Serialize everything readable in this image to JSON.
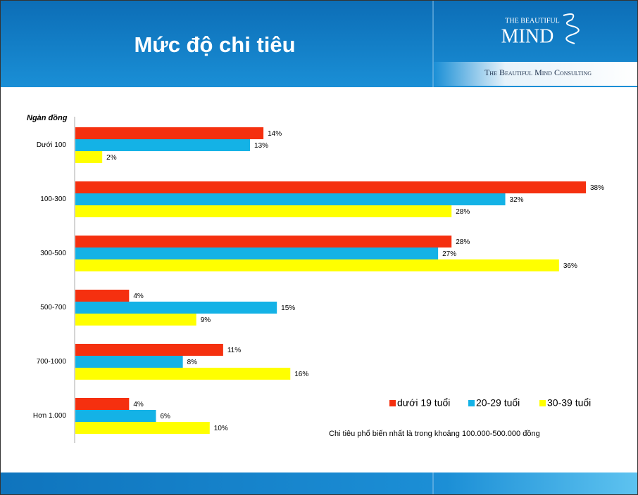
{
  "header": {
    "title": "Mức độ chi tiêu"
  },
  "logo": {
    "top": "THE BEAUTIFUL",
    "main": "MIND",
    "tagline": "The Beautiful Mind Consulting"
  },
  "chart_data": {
    "type": "bar",
    "orientation": "horizontal",
    "y_label": "Ngàn đồng",
    "categories": [
      "Dưới 100",
      "100-300",
      "300-500",
      "500-700",
      "700-1000",
      "Hơn 1.000"
    ],
    "series": [
      {
        "name": "dưới 19 tuổi",
        "color": "#f5300f",
        "values": [
          14,
          38,
          28,
          4,
          11,
          4
        ],
        "value_labels": [
          "14%",
          "38%",
          "28%",
          "4%",
          "11%",
          "4%"
        ]
      },
      {
        "name": "20-29 tuổi",
        "color": "#14b2e6",
        "values": [
          13,
          32,
          27,
          15,
          8,
          6
        ],
        "value_labels": [
          "13%",
          "32%",
          "27%",
          "15%",
          "8%",
          "6%"
        ]
      },
      {
        "name": "30-39 tuổi",
        "color": "#ffff00",
        "values": [
          2,
          28,
          36,
          9,
          16,
          10
        ],
        "value_labels": [
          "2%",
          "28%",
          "36%",
          "9%",
          "16%",
          "10%"
        ]
      }
    ],
    "xlim": [
      0,
      38
    ],
    "annotation": "Chi tiêu phổ biến nhất là trong khoảng 100.000-500.000 đồng"
  }
}
